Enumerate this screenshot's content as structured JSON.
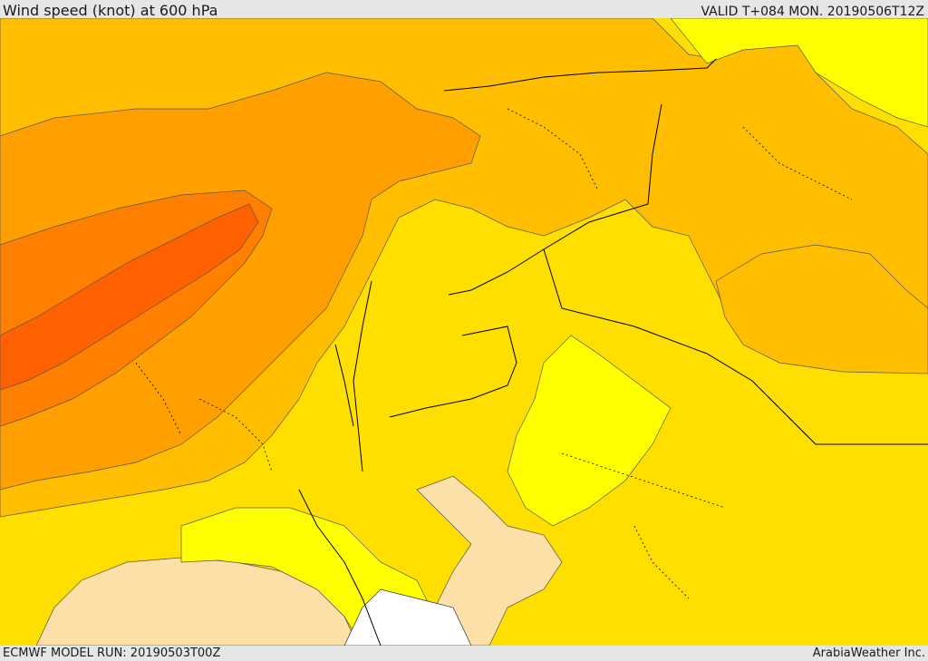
{
  "header": {
    "title": "Wind speed (knot) at 600 hPa",
    "valid_time": "VALID T+084 MON. 20190506T12Z"
  },
  "footer": {
    "model_run": "ECMWF MODEL RUN: 20190503T00Z",
    "credit": "ArabiaWeather Inc."
  },
  "map": {
    "colors": {
      "very_light": "#fde0a8",
      "light_yellow": "#ffff00",
      "yellow": "#ffdf00",
      "light_orange": "#ffbf00",
      "orange": "#ff9f00",
      "dark_orange": "#ff8000",
      "red_orange": "#ff6000",
      "no_data": "#ffffff",
      "contour": "#555555",
      "border": "#000000"
    }
  }
}
